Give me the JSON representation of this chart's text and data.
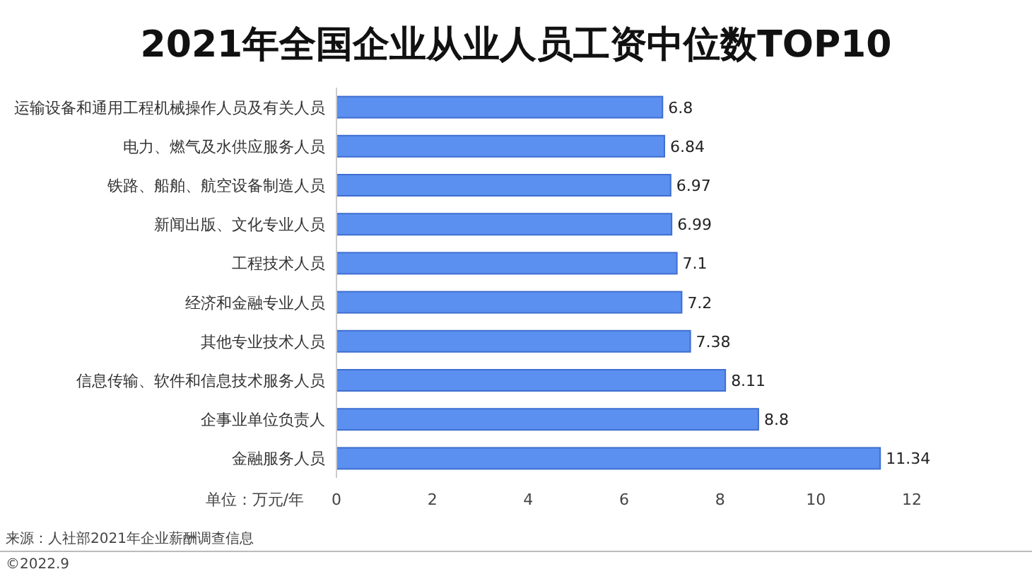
{
  "chart_data": {
    "type": "bar",
    "orientation": "horizontal",
    "title": "2021年全国企业从业人员工资中位数TOP10",
    "xlabel": "单位：万元/年",
    "categories": [
      "运输设备和通用工程机械操作人员及有关人员",
      "电力、燃气及水供应服务人员",
      "铁路、船舶、航空设备制造人员",
      "新闻出版、文化专业人员",
      "工程技术人员",
      "经济和金融专业人员",
      "其他专业技术人员",
      "信息传输、软件和信息技术服务人员",
      "企事业单位负责人",
      "金融服务人员"
    ],
    "values": [
      6.8,
      6.84,
      6.97,
      6.99,
      7.1,
      7.2,
      7.38,
      8.11,
      8.8,
      11.34
    ],
    "color": "#5b8ff0",
    "xlim": [
      0,
      12
    ],
    "xticks": [
      0,
      2,
      4,
      6,
      8,
      10,
      12
    ],
    "data_labels": true,
    "grid": false,
    "annotations": [
      "来源：人社部2021年企业薪酬调查信息",
      "©2022.9"
    ]
  }
}
